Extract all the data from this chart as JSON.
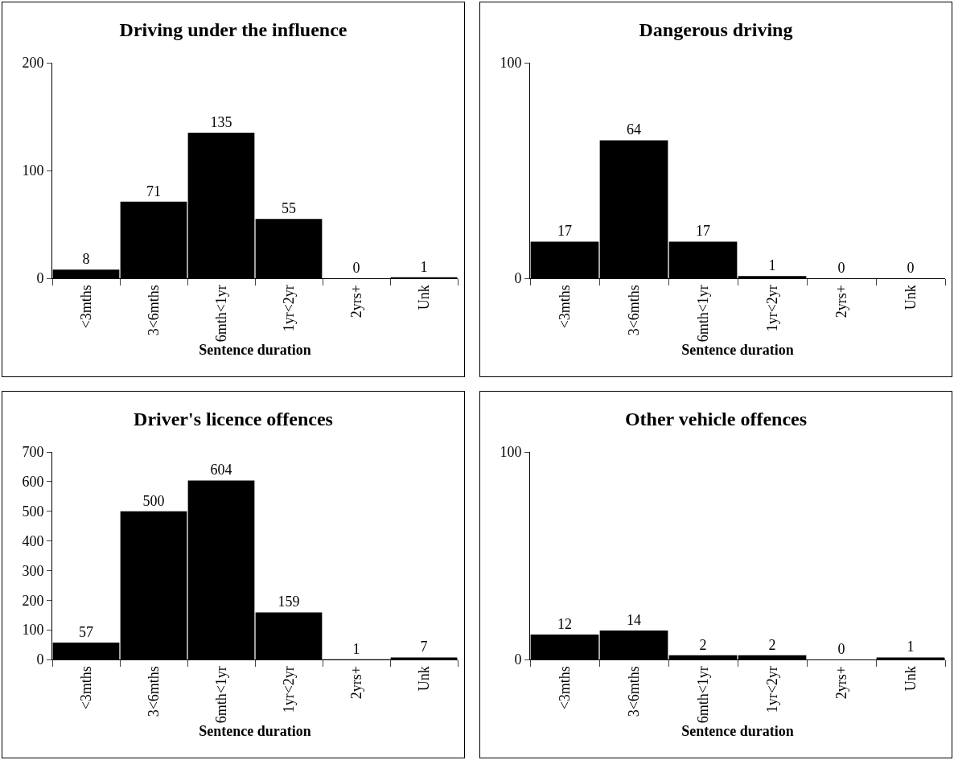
{
  "chart_data": [
    {
      "type": "bar",
      "title": "Driving under the influence",
      "xlabel": "Sentence duration",
      "categories": [
        "<3mths",
        "3<6mths",
        "6mth<1yr",
        "1yr<2yr",
        "2yrs+",
        "Unk"
      ],
      "values": [
        8,
        71,
        135,
        55,
        0,
        1
      ],
      "color": "#000000",
      "ylim": [
        0,
        200
      ],
      "yticks": [
        0,
        100,
        200
      ],
      "grid": false,
      "data_labels": true
    },
    {
      "type": "bar",
      "title": "Dangerous driving",
      "xlabel": "Sentence duration",
      "categories": [
        "<3mths",
        "3<6mths",
        "6mth<1yr",
        "1yr<2yr",
        "2yrs+",
        "Unk"
      ],
      "values": [
        17,
        64,
        17,
        1,
        0,
        0
      ],
      "color": "#000000",
      "ylim": [
        0,
        100
      ],
      "yticks": [
        0,
        100
      ],
      "grid": false,
      "data_labels": true
    },
    {
      "type": "bar",
      "title": "Driver's licence offences",
      "xlabel": "Sentence duration",
      "categories": [
        "<3mths",
        "3<6mths",
        "6mth<1yr",
        "1yr<2yr",
        "2yrs+",
        "Unk"
      ],
      "values": [
        57,
        500,
        604,
        159,
        1,
        7
      ],
      "color": "#000000",
      "ylim": [
        0,
        700
      ],
      "yticks": [
        0,
        100,
        200,
        300,
        400,
        500,
        600,
        700
      ],
      "grid": false,
      "data_labels": true
    },
    {
      "type": "bar",
      "title": "Other vehicle offences",
      "xlabel": "Sentence duration",
      "categories": [
        "<3mths",
        "3<6mths",
        "6mth<1yr",
        "1yr<2yr",
        "2yrs+",
        "Unk"
      ],
      "values": [
        12,
        14,
        2,
        2,
        0,
        1
      ],
      "color": "#000000",
      "ylim": [
        0,
        100
      ],
      "yticks": [
        0,
        100
      ],
      "grid": false,
      "data_labels": true
    }
  ]
}
